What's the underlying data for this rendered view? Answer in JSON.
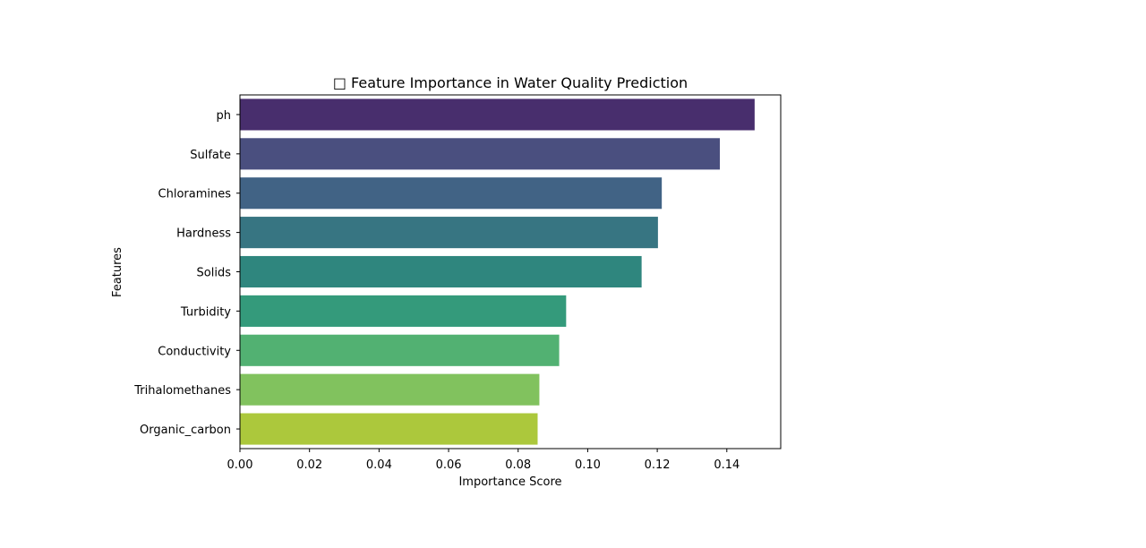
{
  "chart_data": {
    "type": "bar",
    "orientation": "horizontal",
    "title": "□ Feature Importance in Water Quality Prediction",
    "xlabel": "Importance Score",
    "ylabel": "Features",
    "categories": [
      "ph",
      "Sulfate",
      "Chloramines",
      "Hardness",
      "Solids",
      "Turbidity",
      "Conductivity",
      "Trihalomethanes",
      "Organic_carbon"
    ],
    "values": [
      0.148,
      0.138,
      0.1213,
      0.1202,
      0.1155,
      0.0938,
      0.0918,
      0.0861,
      0.0856
    ],
    "colors": [
      "#482e6d",
      "#4a4f7f",
      "#416385",
      "#377582",
      "#2f867e",
      "#349a7b",
      "#52b172",
      "#81c25e",
      "#acc83c"
    ],
    "xlim": [
      0,
      0.1555
    ],
    "xticks": [
      0.0,
      0.02,
      0.04,
      0.06,
      0.08,
      0.1,
      0.12,
      0.14
    ],
    "xtick_labels": [
      "0.00",
      "0.02",
      "0.04",
      "0.06",
      "0.08",
      "0.10",
      "0.12",
      "0.14"
    ],
    "grid": false,
    "legend": "none"
  }
}
